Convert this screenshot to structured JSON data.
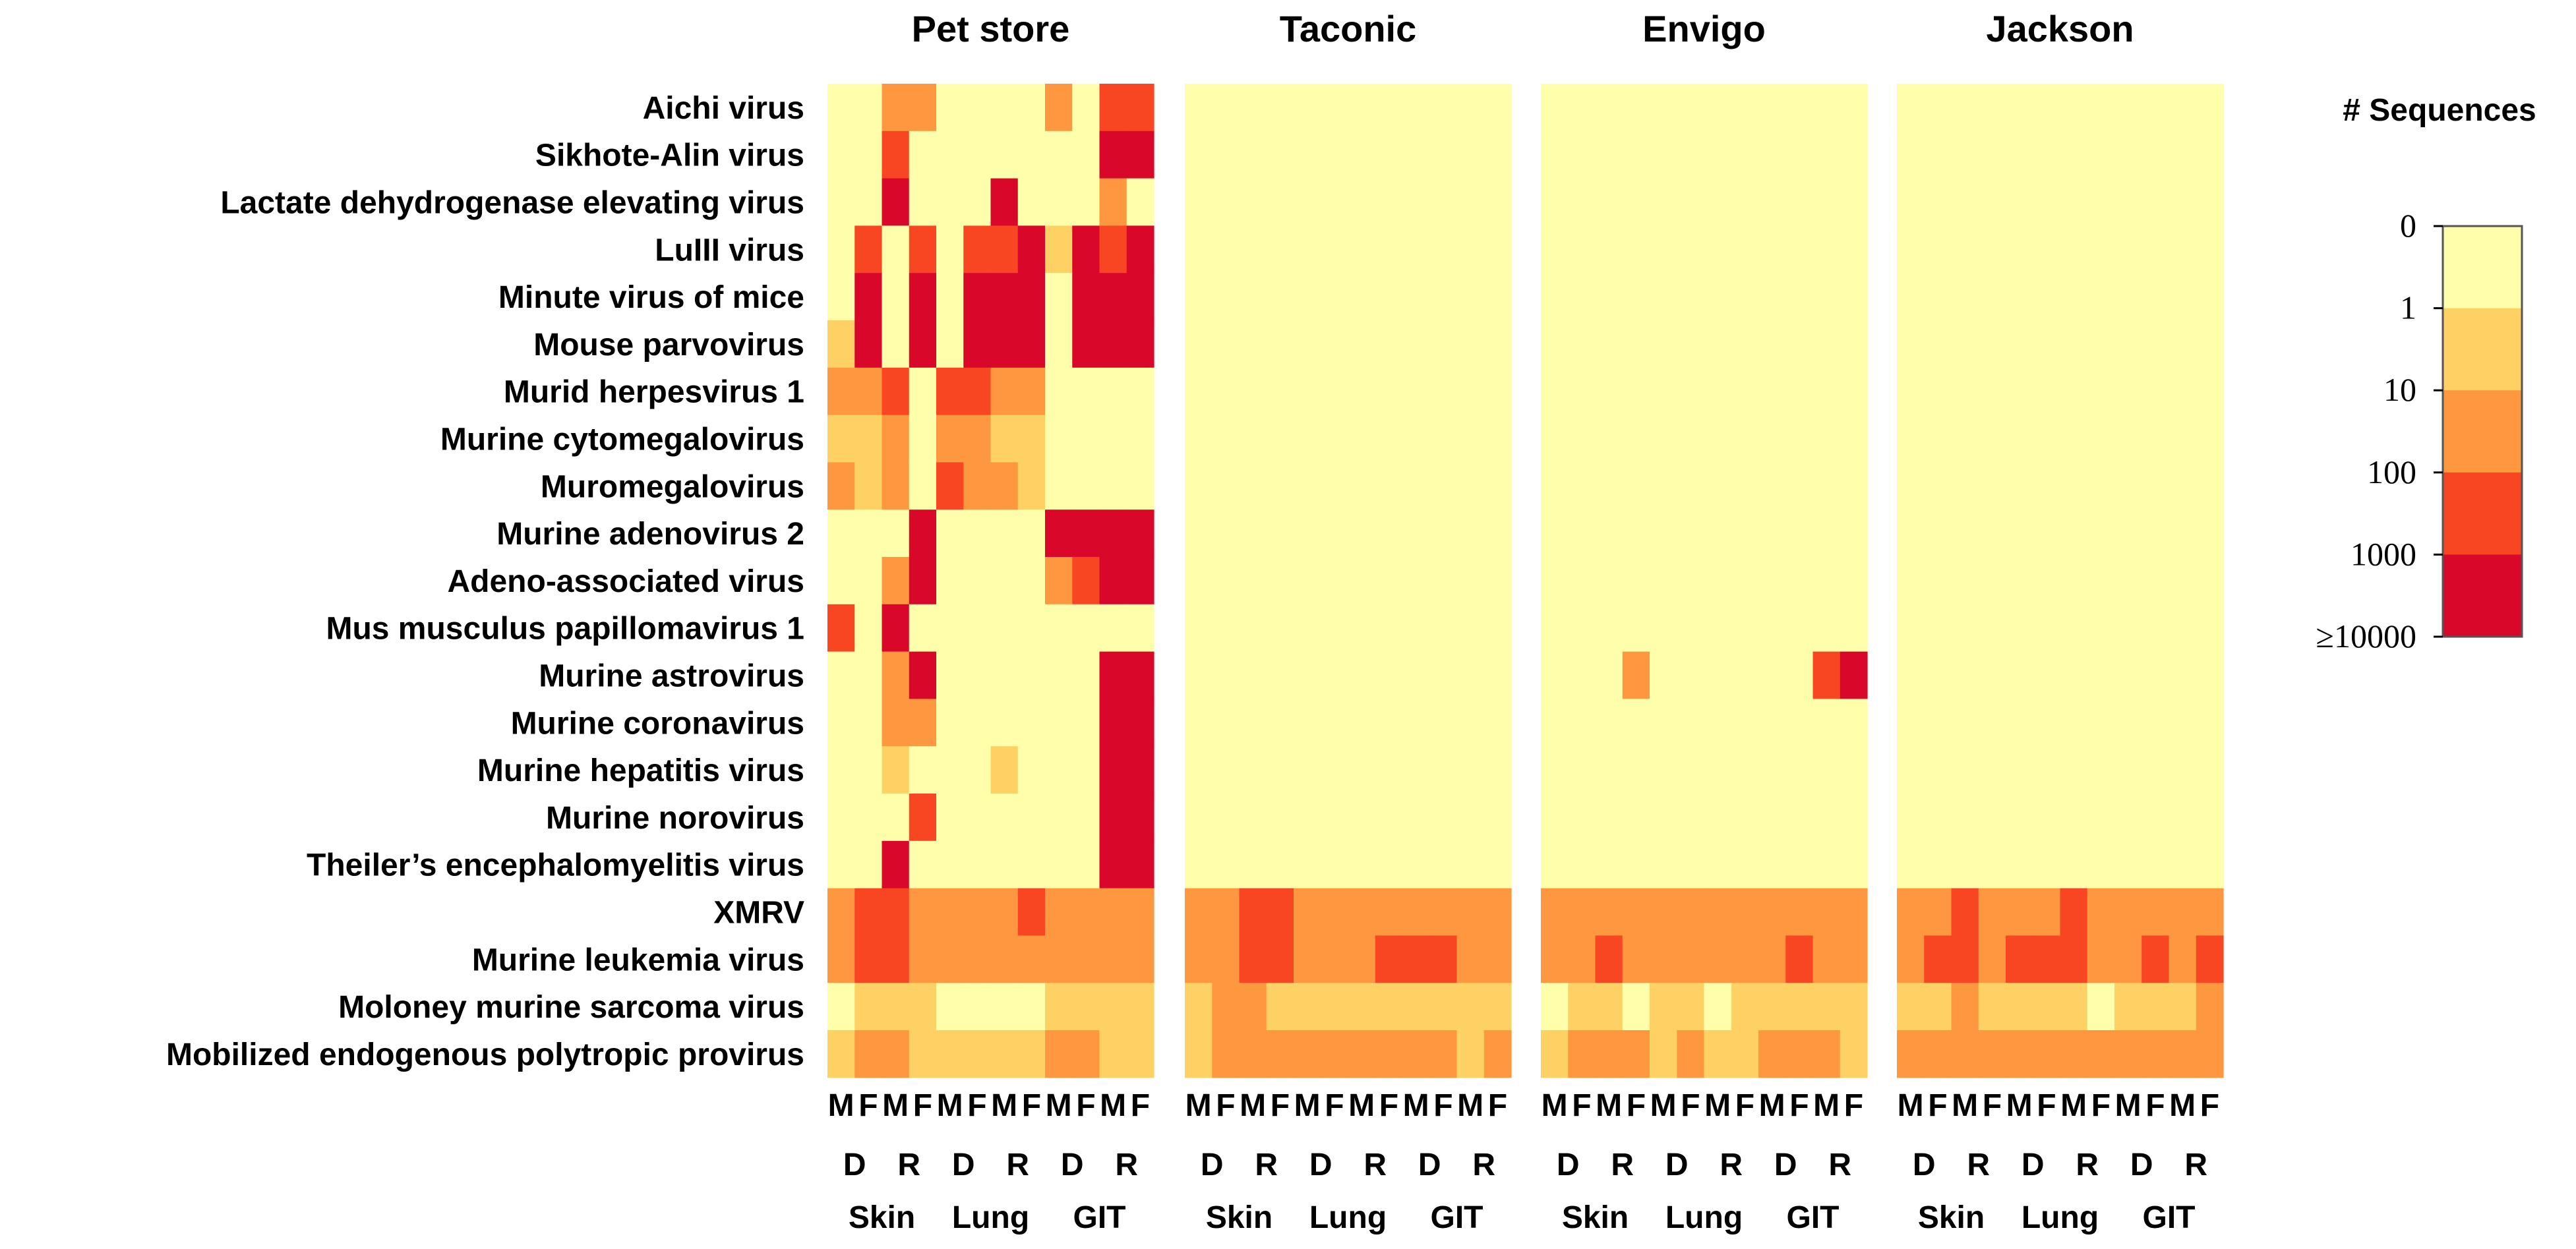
{
  "chart_data": {
    "type": "heatmap",
    "panels": [
      "Pet store",
      "Taconic",
      "Envigo",
      "Jackson"
    ],
    "rows": [
      "Aichi virus",
      "Sikhote-Alin virus",
      "Lactate dehydrogenase elevating virus",
      "LuIII virus",
      "Minute virus of mice",
      "Mouse parvovirus",
      "Murid herpesvirus 1",
      "Murine cytomegalovirus",
      "Muromegalovirus",
      "Murine adenovirus 2",
      "Adeno-associated virus",
      "Mus musculus papillomavirus 1",
      "Murine astrovirus",
      "Murine coronavirus",
      "Murine hepatitis virus",
      "Murine norovirus",
      "Theiler’s encephalomyelitis virus",
      "XMRV",
      "Murine leukemia virus",
      "Moloney murine sarcoma virus",
      "Mobilized endogenous polytropic provirus"
    ],
    "columns_per_panel": [
      "M",
      "F",
      "M",
      "F",
      "M",
      "F",
      "M",
      "F",
      "M",
      "F",
      "M",
      "F"
    ],
    "groups": [
      {
        "sub": "D",
        "tissue": "Skin"
      },
      {
        "sub": "R",
        "tissue": "Skin"
      },
      {
        "sub": "D",
        "tissue": "Lung"
      },
      {
        "sub": "R",
        "tissue": "Lung"
      },
      {
        "sub": "D",
        "tissue": "GIT"
      },
      {
        "sub": "R",
        "tissue": "GIT"
      }
    ],
    "tissue_labels": [
      "Skin",
      "Lung",
      "GIT"
    ],
    "sub_labels": [
      "D",
      "R"
    ],
    "sex_labels": [
      "M",
      "F"
    ],
    "legend": {
      "title": "# Sequences",
      "tick_labels": [
        "0",
        "1",
        "10",
        "100",
        "1000",
        "≥10000"
      ],
      "bin_colors": [
        "#FFFFAB",
        "#FED165",
        "#FD9840",
        "#F84622",
        "#D9082A"
      ]
    },
    "value_note": "cell values are color bin indices 0-4 (0 = <1, 1 = 1-10, 2 = 10-100, 3 = 100-1000, 4 = >=1000)",
    "values": {
      "Pet store": [
        [
          0,
          0,
          2,
          2,
          0,
          0,
          0,
          0,
          2,
          0,
          3,
          3
        ],
        [
          0,
          0,
          3,
          0,
          0,
          0,
          0,
          0,
          0,
          0,
          4,
          4
        ],
        [
          0,
          0,
          4,
          0,
          0,
          0,
          4,
          0,
          0,
          0,
          2,
          0
        ],
        [
          0,
          3,
          0,
          3,
          0,
          3,
          3,
          4,
          1,
          4,
          3,
          4
        ],
        [
          0,
          4,
          0,
          4,
          0,
          4,
          4,
          4,
          0,
          4,
          4,
          4
        ],
        [
          1,
          4,
          0,
          4,
          0,
          4,
          4,
          4,
          0,
          4,
          4,
          4
        ],
        [
          2,
          2,
          3,
          0,
          3,
          3,
          2,
          2,
          0,
          0,
          0,
          0
        ],
        [
          1,
          1,
          2,
          0,
          2,
          2,
          1,
          1,
          0,
          0,
          0,
          0
        ],
        [
          2,
          1,
          2,
          0,
          3,
          2,
          2,
          1,
          0,
          0,
          0,
          0
        ],
        [
          0,
          0,
          0,
          4,
          0,
          0,
          0,
          0,
          4,
          4,
          4,
          4
        ],
        [
          0,
          0,
          2,
          4,
          0,
          0,
          0,
          0,
          2,
          3,
          4,
          4
        ],
        [
          3,
          0,
          4,
          0,
          0,
          0,
          0,
          0,
          0,
          0,
          0,
          0
        ],
        [
          0,
          0,
          2,
          4,
          0,
          0,
          0,
          0,
          0,
          0,
          4,
          4
        ],
        [
          0,
          0,
          2,
          2,
          0,
          0,
          0,
          0,
          0,
          0,
          4,
          4
        ],
        [
          0,
          0,
          1,
          0,
          0,
          0,
          1,
          0,
          0,
          0,
          4,
          4
        ],
        [
          0,
          0,
          0,
          3,
          0,
          0,
          0,
          0,
          0,
          0,
          4,
          4
        ],
        [
          0,
          0,
          4,
          0,
          0,
          0,
          0,
          0,
          0,
          0,
          4,
          4
        ],
        [
          2,
          3,
          3,
          2,
          2,
          2,
          2,
          3,
          2,
          2,
          2,
          2
        ],
        [
          2,
          3,
          3,
          2,
          2,
          2,
          2,
          2,
          2,
          2,
          2,
          2
        ],
        [
          0,
          1,
          1,
          1,
          0,
          0,
          0,
          0,
          1,
          1,
          1,
          1
        ],
        [
          1,
          2,
          2,
          1,
          1,
          1,
          1,
          1,
          2,
          2,
          1,
          1
        ]
      ],
      "Taconic": [
        [
          0,
          0,
          0,
          0,
          0,
          0,
          0,
          0,
          0,
          0,
          0,
          0
        ],
        [
          0,
          0,
          0,
          0,
          0,
          0,
          0,
          0,
          0,
          0,
          0,
          0
        ],
        [
          0,
          0,
          0,
          0,
          0,
          0,
          0,
          0,
          0,
          0,
          0,
          0
        ],
        [
          0,
          0,
          0,
          0,
          0,
          0,
          0,
          0,
          0,
          0,
          0,
          0
        ],
        [
          0,
          0,
          0,
          0,
          0,
          0,
          0,
          0,
          0,
          0,
          0,
          0
        ],
        [
          0,
          0,
          0,
          0,
          0,
          0,
          0,
          0,
          0,
          0,
          0,
          0
        ],
        [
          0,
          0,
          0,
          0,
          0,
          0,
          0,
          0,
          0,
          0,
          0,
          0
        ],
        [
          0,
          0,
          0,
          0,
          0,
          0,
          0,
          0,
          0,
          0,
          0,
          0
        ],
        [
          0,
          0,
          0,
          0,
          0,
          0,
          0,
          0,
          0,
          0,
          0,
          0
        ],
        [
          0,
          0,
          0,
          0,
          0,
          0,
          0,
          0,
          0,
          0,
          0,
          0
        ],
        [
          0,
          0,
          0,
          0,
          0,
          0,
          0,
          0,
          0,
          0,
          0,
          0
        ],
        [
          0,
          0,
          0,
          0,
          0,
          0,
          0,
          0,
          0,
          0,
          0,
          0
        ],
        [
          0,
          0,
          0,
          0,
          0,
          0,
          0,
          0,
          0,
          0,
          0,
          0
        ],
        [
          0,
          0,
          0,
          0,
          0,
          0,
          0,
          0,
          0,
          0,
          0,
          0
        ],
        [
          0,
          0,
          0,
          0,
          0,
          0,
          0,
          0,
          0,
          0,
          0,
          0
        ],
        [
          0,
          0,
          0,
          0,
          0,
          0,
          0,
          0,
          0,
          0,
          0,
          0
        ],
        [
          0,
          0,
          0,
          0,
          0,
          0,
          0,
          0,
          0,
          0,
          0,
          0
        ],
        [
          2,
          2,
          3,
          3,
          2,
          2,
          2,
          2,
          2,
          2,
          2,
          2
        ],
        [
          2,
          2,
          3,
          3,
          2,
          2,
          2,
          3,
          3,
          3,
          2,
          2
        ],
        [
          1,
          2,
          2,
          1,
          1,
          1,
          1,
          1,
          1,
          1,
          1,
          1
        ],
        [
          1,
          2,
          2,
          2,
          2,
          2,
          2,
          2,
          2,
          2,
          1,
          2
        ]
      ],
      "Envigo": [
        [
          0,
          0,
          0,
          0,
          0,
          0,
          0,
          0,
          0,
          0,
          0,
          0
        ],
        [
          0,
          0,
          0,
          0,
          0,
          0,
          0,
          0,
          0,
          0,
          0,
          0
        ],
        [
          0,
          0,
          0,
          0,
          0,
          0,
          0,
          0,
          0,
          0,
          0,
          0
        ],
        [
          0,
          0,
          0,
          0,
          0,
          0,
          0,
          0,
          0,
          0,
          0,
          0
        ],
        [
          0,
          0,
          0,
          0,
          0,
          0,
          0,
          0,
          0,
          0,
          0,
          0
        ],
        [
          0,
          0,
          0,
          0,
          0,
          0,
          0,
          0,
          0,
          0,
          0,
          0
        ],
        [
          0,
          0,
          0,
          0,
          0,
          0,
          0,
          0,
          0,
          0,
          0,
          0
        ],
        [
          0,
          0,
          0,
          0,
          0,
          0,
          0,
          0,
          0,
          0,
          0,
          0
        ],
        [
          0,
          0,
          0,
          0,
          0,
          0,
          0,
          0,
          0,
          0,
          0,
          0
        ],
        [
          0,
          0,
          0,
          0,
          0,
          0,
          0,
          0,
          0,
          0,
          0,
          0
        ],
        [
          0,
          0,
          0,
          0,
          0,
          0,
          0,
          0,
          0,
          0,
          0,
          0
        ],
        [
          0,
          0,
          0,
          0,
          0,
          0,
          0,
          0,
          0,
          0,
          0,
          0
        ],
        [
          0,
          0,
          0,
          2,
          0,
          0,
          0,
          0,
          0,
          0,
          3,
          4
        ],
        [
          0,
          0,
          0,
          0,
          0,
          0,
          0,
          0,
          0,
          0,
          0,
          0
        ],
        [
          0,
          0,
          0,
          0,
          0,
          0,
          0,
          0,
          0,
          0,
          0,
          0
        ],
        [
          0,
          0,
          0,
          0,
          0,
          0,
          0,
          0,
          0,
          0,
          0,
          0
        ],
        [
          0,
          0,
          0,
          0,
          0,
          0,
          0,
          0,
          0,
          0,
          0,
          0
        ],
        [
          2,
          2,
          2,
          2,
          2,
          2,
          2,
          2,
          2,
          2,
          2,
          2
        ],
        [
          2,
          2,
          3,
          2,
          2,
          2,
          2,
          2,
          2,
          3,
          2,
          2
        ],
        [
          0,
          1,
          1,
          0,
          1,
          1,
          0,
          1,
          1,
          1,
          1,
          1
        ],
        [
          1,
          2,
          2,
          2,
          1,
          2,
          1,
          1,
          2,
          2,
          2,
          1
        ]
      ],
      "Jackson": [
        [
          0,
          0,
          0,
          0,
          0,
          0,
          0,
          0,
          0,
          0,
          0,
          0
        ],
        [
          0,
          0,
          0,
          0,
          0,
          0,
          0,
          0,
          0,
          0,
          0,
          0
        ],
        [
          0,
          0,
          0,
          0,
          0,
          0,
          0,
          0,
          0,
          0,
          0,
          0
        ],
        [
          0,
          0,
          0,
          0,
          0,
          0,
          0,
          0,
          0,
          0,
          0,
          0
        ],
        [
          0,
          0,
          0,
          0,
          0,
          0,
          0,
          0,
          0,
          0,
          0,
          0
        ],
        [
          0,
          0,
          0,
          0,
          0,
          0,
          0,
          0,
          0,
          0,
          0,
          0
        ],
        [
          0,
          0,
          0,
          0,
          0,
          0,
          0,
          0,
          0,
          0,
          0,
          0
        ],
        [
          0,
          0,
          0,
          0,
          0,
          0,
          0,
          0,
          0,
          0,
          0,
          0
        ],
        [
          0,
          0,
          0,
          0,
          0,
          0,
          0,
          0,
          0,
          0,
          0,
          0
        ],
        [
          0,
          0,
          0,
          0,
          0,
          0,
          0,
          0,
          0,
          0,
          0,
          0
        ],
        [
          0,
          0,
          0,
          0,
          0,
          0,
          0,
          0,
          0,
          0,
          0,
          0
        ],
        [
          0,
          0,
          0,
          0,
          0,
          0,
          0,
          0,
          0,
          0,
          0,
          0
        ],
        [
          0,
          0,
          0,
          0,
          0,
          0,
          0,
          0,
          0,
          0,
          0,
          0
        ],
        [
          0,
          0,
          0,
          0,
          0,
          0,
          0,
          0,
          0,
          0,
          0,
          0
        ],
        [
          0,
          0,
          0,
          0,
          0,
          0,
          0,
          0,
          0,
          0,
          0,
          0
        ],
        [
          0,
          0,
          0,
          0,
          0,
          0,
          0,
          0,
          0,
          0,
          0,
          0
        ],
        [
          0,
          0,
          0,
          0,
          0,
          0,
          0,
          0,
          0,
          0,
          0,
          0
        ],
        [
          2,
          2,
          3,
          2,
          2,
          2,
          3,
          2,
          2,
          2,
          2,
          2
        ],
        [
          2,
          3,
          3,
          2,
          3,
          3,
          3,
          2,
          2,
          3,
          2,
          3
        ],
        [
          1,
          1,
          2,
          1,
          1,
          1,
          1,
          0,
          1,
          1,
          1,
          2
        ],
        [
          2,
          2,
          2,
          2,
          2,
          2,
          2,
          2,
          2,
          2,
          2,
          2
        ]
      ]
    }
  }
}
